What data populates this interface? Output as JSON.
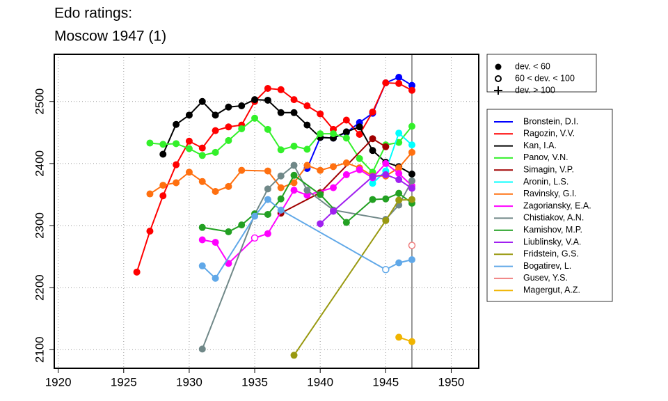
{
  "chart_data": {
    "type": "line",
    "title": [
      "Edo ratings:",
      "Moscow 1947 (1)"
    ],
    "xlim": [
      1919.7,
      1952.1
    ],
    "ylim": [
      2070,
      2576
    ],
    "xticks": [
      1920,
      1925,
      1930,
      1935,
      1940,
      1945,
      1950
    ],
    "yticks": [
      2100,
      2200,
      2300,
      2400,
      2500
    ],
    "grid": true,
    "vline": 1947,
    "marker_legend": [
      "dev. < 60",
      "60 < dev. < 100",
      "dev. > 100"
    ],
    "series": [
      {
        "name": "Bronstein, D.I.",
        "color": "#0000ff",
        "x": [
          1939,
          1940,
          1941,
          1942,
          1943,
          1944,
          1945,
          1946,
          1947
        ],
        "values": [
          2392,
          2442,
          2441,
          2450,
          2466,
          2481,
          2530,
          2539,
          2526
        ]
      },
      {
        "name": "Ragozin, V.V.",
        "color": "#ff0000",
        "x": [
          1926,
          1927,
          1928,
          1929,
          1930,
          1931,
          1932,
          1933,
          1934,
          1935,
          1936,
          1937,
          1938,
          1939,
          1940,
          1941,
          1942,
          1943,
          1944,
          1945,
          1946,
          1947
        ],
        "values": [
          2225,
          2291,
          2348,
          2398,
          2436,
          2425,
          2453,
          2459,
          2462,
          2500,
          2521,
          2519,
          2503,
          2493,
          2480,
          2455,
          2470,
          2447,
          2483,
          2530,
          2529,
          2518
        ]
      },
      {
        "name": "Kan, I.A.",
        "color": "#000000",
        "x": [
          1928,
          1929,
          1930,
          1931,
          1932,
          1933,
          1934,
          1935,
          1936,
          1937,
          1938,
          1939,
          1940,
          1941,
          1942,
          1943,
          1944,
          1945,
          1946,
          1947
        ],
        "values": [
          2415,
          2463,
          2478,
          2500,
          2478,
          2491,
          2493,
          2503,
          2502,
          2482,
          2482,
          2462,
          2442,
          2441,
          2451,
          2459,
          2421,
          2402,
          2395,
          2383
        ]
      },
      {
        "name": "Panov, V.N.",
        "color": "#33f02a",
        "x": [
          1927,
          1928,
          1929,
          1930,
          1931,
          1932,
          1933,
          1934,
          1935,
          1936,
          1937,
          1938,
          1939,
          1940,
          1941,
          1942,
          1943,
          1944,
          1945,
          1946,
          1947
        ],
        "values": [
          2433,
          2431,
          2432,
          2424,
          2413,
          2418,
          2437,
          2456,
          2473,
          2455,
          2422,
          2428,
          2423,
          2448,
          2448,
          2441,
          2408,
          2386,
          2430,
          2434,
          2460
        ]
      },
      {
        "name": "Simagin, V.P.",
        "color": "#a00000",
        "x": [
          1937,
          1940,
          1944,
          1945
        ],
        "values": [
          2320,
          2353,
          2440,
          2427
        ]
      },
      {
        "name": "Aronin, L.S.",
        "color": "#00ffff",
        "x": [
          1944,
          1945,
          1946,
          1947
        ],
        "values": [
          2368,
          2388,
          2449,
          2430
        ]
      },
      {
        "name": "Ravinsky, G.I.",
        "color": "#ff7010",
        "x": [
          1927,
          1928,
          1929,
          1930,
          1931,
          1932,
          1933,
          1934,
          1936,
          1937,
          1938,
          1939,
          1940,
          1941,
          1942,
          1943,
          1944,
          1945,
          1946,
          1947
        ],
        "values": [
          2351,
          2365,
          2369,
          2386,
          2371,
          2355,
          2363,
          2389,
          2388,
          2361,
          2369,
          2397,
          2389,
          2395,
          2401,
          2393,
          2380,
          2380,
          2393,
          2418
        ]
      },
      {
        "name": "Zagoriansky, E.A.",
        "color": "#ff00ff",
        "x": [
          1931,
          1932,
          1933,
          1935,
          1936,
          1938,
          1939,
          1941,
          1942,
          1943,
          1944,
          1945,
          1946,
          1947
        ],
        "values": [
          2277,
          2273,
          2239,
          2280,
          2287,
          2357,
          2349,
          2361,
          2382,
          2390,
          2377,
          2400,
          2384,
          2364
        ],
        "open": [
          3
        ]
      },
      {
        "name": "Chistiakov, A.N.",
        "color": "#708888",
        "x": [
          1931,
          1935,
          1936,
          1937,
          1938,
          1939,
          1941,
          1945,
          1946,
          1947
        ],
        "values": [
          2101,
          2318,
          2359,
          2380,
          2397,
          2357,
          2325,
          2310,
          2333,
          2372
        ]
      },
      {
        "name": "Kamishov, M.P.",
        "color": "#22a022",
        "x": [
          1931,
          1933,
          1934,
          1935,
          1936,
          1937,
          1938,
          1940,
          1942,
          1944,
          1945,
          1946,
          1947
        ],
        "values": [
          2297,
          2290,
          2301,
          2319,
          2318,
          2343,
          2381,
          2350,
          2305,
          2342,
          2343,
          2352,
          2336
        ]
      },
      {
        "name": "Liublinsky, V.A.",
        "color": "#a020f0",
        "x": [
          1940,
          1941,
          1944,
          1945,
          1946,
          1947
        ],
        "values": [
          2303,
          2323,
          2379,
          2382,
          2374,
          2360
        ]
      },
      {
        "name": "Fridstein, G.S.",
        "color": "#999910",
        "x": [
          1938,
          1945,
          1946,
          1947
        ],
        "values": [
          2091,
          2308,
          2341,
          2342
        ]
      },
      {
        "name": "Bogatirev, L.",
        "color": "#60a8e8",
        "x": [
          1931,
          1932,
          1935,
          1936,
          1937,
          1945,
          1946,
          1947
        ],
        "values": [
          2235,
          2215,
          2315,
          2342,
          2325,
          2229,
          2240,
          2245
        ],
        "open": [
          5
        ]
      },
      {
        "name": "Gusev, Y.S.",
        "color": "#f08080",
        "x": [
          1947
        ],
        "values": [
          2268
        ],
        "open": [
          0
        ]
      },
      {
        "name": "Magergut, A.Z.",
        "color": "#f0b400",
        "x": [
          1946,
          1947
        ],
        "values": [
          2120,
          2113
        ]
      }
    ]
  }
}
